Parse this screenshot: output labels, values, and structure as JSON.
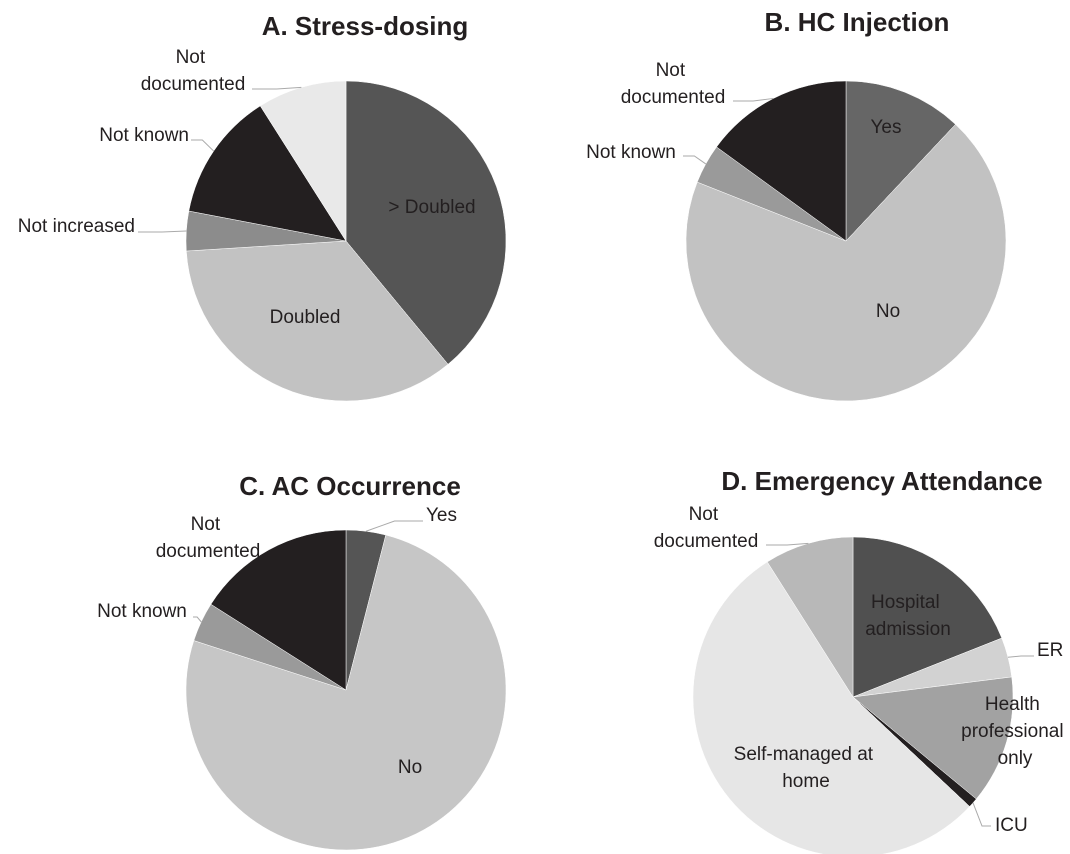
{
  "chart_data": [
    {
      "type": "pie",
      "title": "A. Stress-dosing",
      "categories": [
        "> Doubled",
        "Doubled",
        "Not increased",
        "Not known",
        "Not documented"
      ],
      "values": [
        39,
        35,
        4,
        13,
        9
      ],
      "colors": [
        "#555555",
        "#c2c2c2",
        "#8c8c8c",
        "#231f20",
        "#e9e9e9"
      ]
    },
    {
      "type": "pie",
      "title": "B. HC Injection",
      "categories": [
        "Yes",
        "No",
        "Not known",
        "Not documented"
      ],
      "values": [
        12,
        69,
        4,
        15
      ],
      "colors": [
        "#666666",
        "#c2c2c2",
        "#9a9a9a",
        "#231f20"
      ]
    },
    {
      "type": "pie",
      "title": "C. AC Occurrence",
      "categories": [
        "Yes",
        "No",
        "Not known",
        "Not documented"
      ],
      "values": [
        4,
        76,
        4,
        16
      ],
      "colors": [
        "#555555",
        "#c6c6c6",
        "#9a9a9a",
        "#231f20"
      ]
    },
    {
      "type": "pie",
      "title": "D. Emergency Attendance",
      "categories": [
        "Hospital admission",
        "ER",
        "Health professional only",
        "ICU",
        "Self-managed at home",
        "Not documented"
      ],
      "values": [
        19,
        4,
        13,
        1,
        54,
        9
      ],
      "colors": [
        "#505050",
        "#d2d2d2",
        "#a2a2a2",
        "#231f20",
        "#e6e6e6",
        "#b8b8b8"
      ]
    }
  ]
}
